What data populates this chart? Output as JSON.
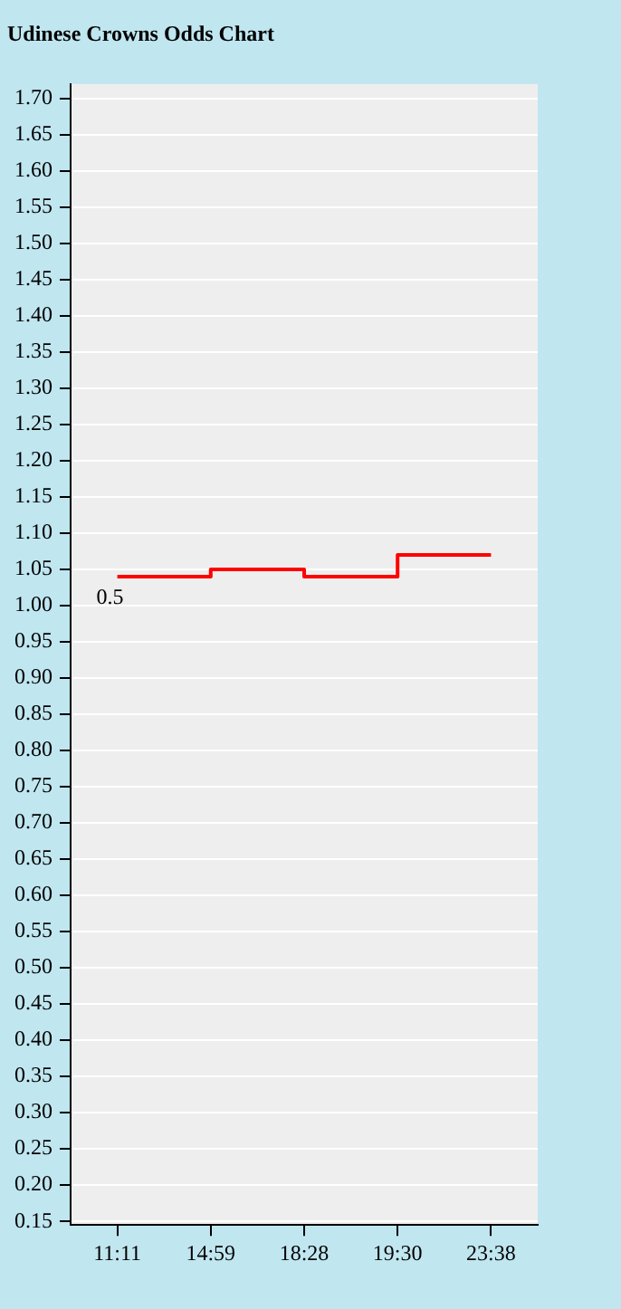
{
  "chart_data": {
    "type": "step",
    "title": "Udinese Crowns Odds Chart",
    "categories": [
      "11:11",
      "14:59",
      "18:28",
      "19:30",
      "23:38"
    ],
    "series": [
      {
        "color": "#ff0000",
        "values": [
          1.04,
          1.05,
          1.04,
          1.07,
          1.07
        ]
      }
    ],
    "ylim": [
      0.145,
      1.72
    ],
    "yticks": [
      {
        "value": 0.15,
        "label": "0.15"
      },
      {
        "value": 0.2,
        "label": "0.20"
      },
      {
        "value": 0.25,
        "label": "0.25"
      },
      {
        "value": 0.3,
        "label": "0.30"
      },
      {
        "value": 0.35,
        "label": "0.35"
      },
      {
        "value": 0.4,
        "label": "0.40"
      },
      {
        "value": 0.45,
        "label": "0.45"
      },
      {
        "value": 0.5,
        "label": "0.50"
      },
      {
        "value": 0.55,
        "label": "0.55"
      },
      {
        "value": 0.6,
        "label": "0.60"
      },
      {
        "value": 0.65,
        "label": "0.65"
      },
      {
        "value": 0.7,
        "label": "0.70"
      },
      {
        "value": 0.75,
        "label": "0.75"
      },
      {
        "value": 0.8,
        "label": "0.80"
      },
      {
        "value": 0.85,
        "label": "0.85"
      },
      {
        "value": 0.9,
        "label": "0.90"
      },
      {
        "value": 0.95,
        "label": "0.95"
      },
      {
        "value": 1.0,
        "label": "1.00"
      },
      {
        "value": 1.05,
        "label": "1.05"
      },
      {
        "value": 1.1,
        "label": "1.10"
      },
      {
        "value": 1.15,
        "label": "1.15"
      },
      {
        "value": 1.2,
        "label": "1.20"
      },
      {
        "value": 1.25,
        "label": "1.25"
      },
      {
        "value": 1.3,
        "label": "1.30"
      },
      {
        "value": 1.35,
        "label": "1.35"
      },
      {
        "value": 1.4,
        "label": "1.40"
      },
      {
        "value": 1.45,
        "label": "1.45"
      },
      {
        "value": 1.5,
        "label": "1.50"
      },
      {
        "value": 1.55,
        "label": "1.55"
      },
      {
        "value": 1.6,
        "label": "1.60"
      },
      {
        "value": 1.65,
        "label": "1.65"
      },
      {
        "value": 1.7,
        "label": "1.70"
      }
    ],
    "annotations": [
      "0.5"
    ],
    "grid": "y",
    "legend": false,
    "marker": "none",
    "line_style": "solid"
  }
}
